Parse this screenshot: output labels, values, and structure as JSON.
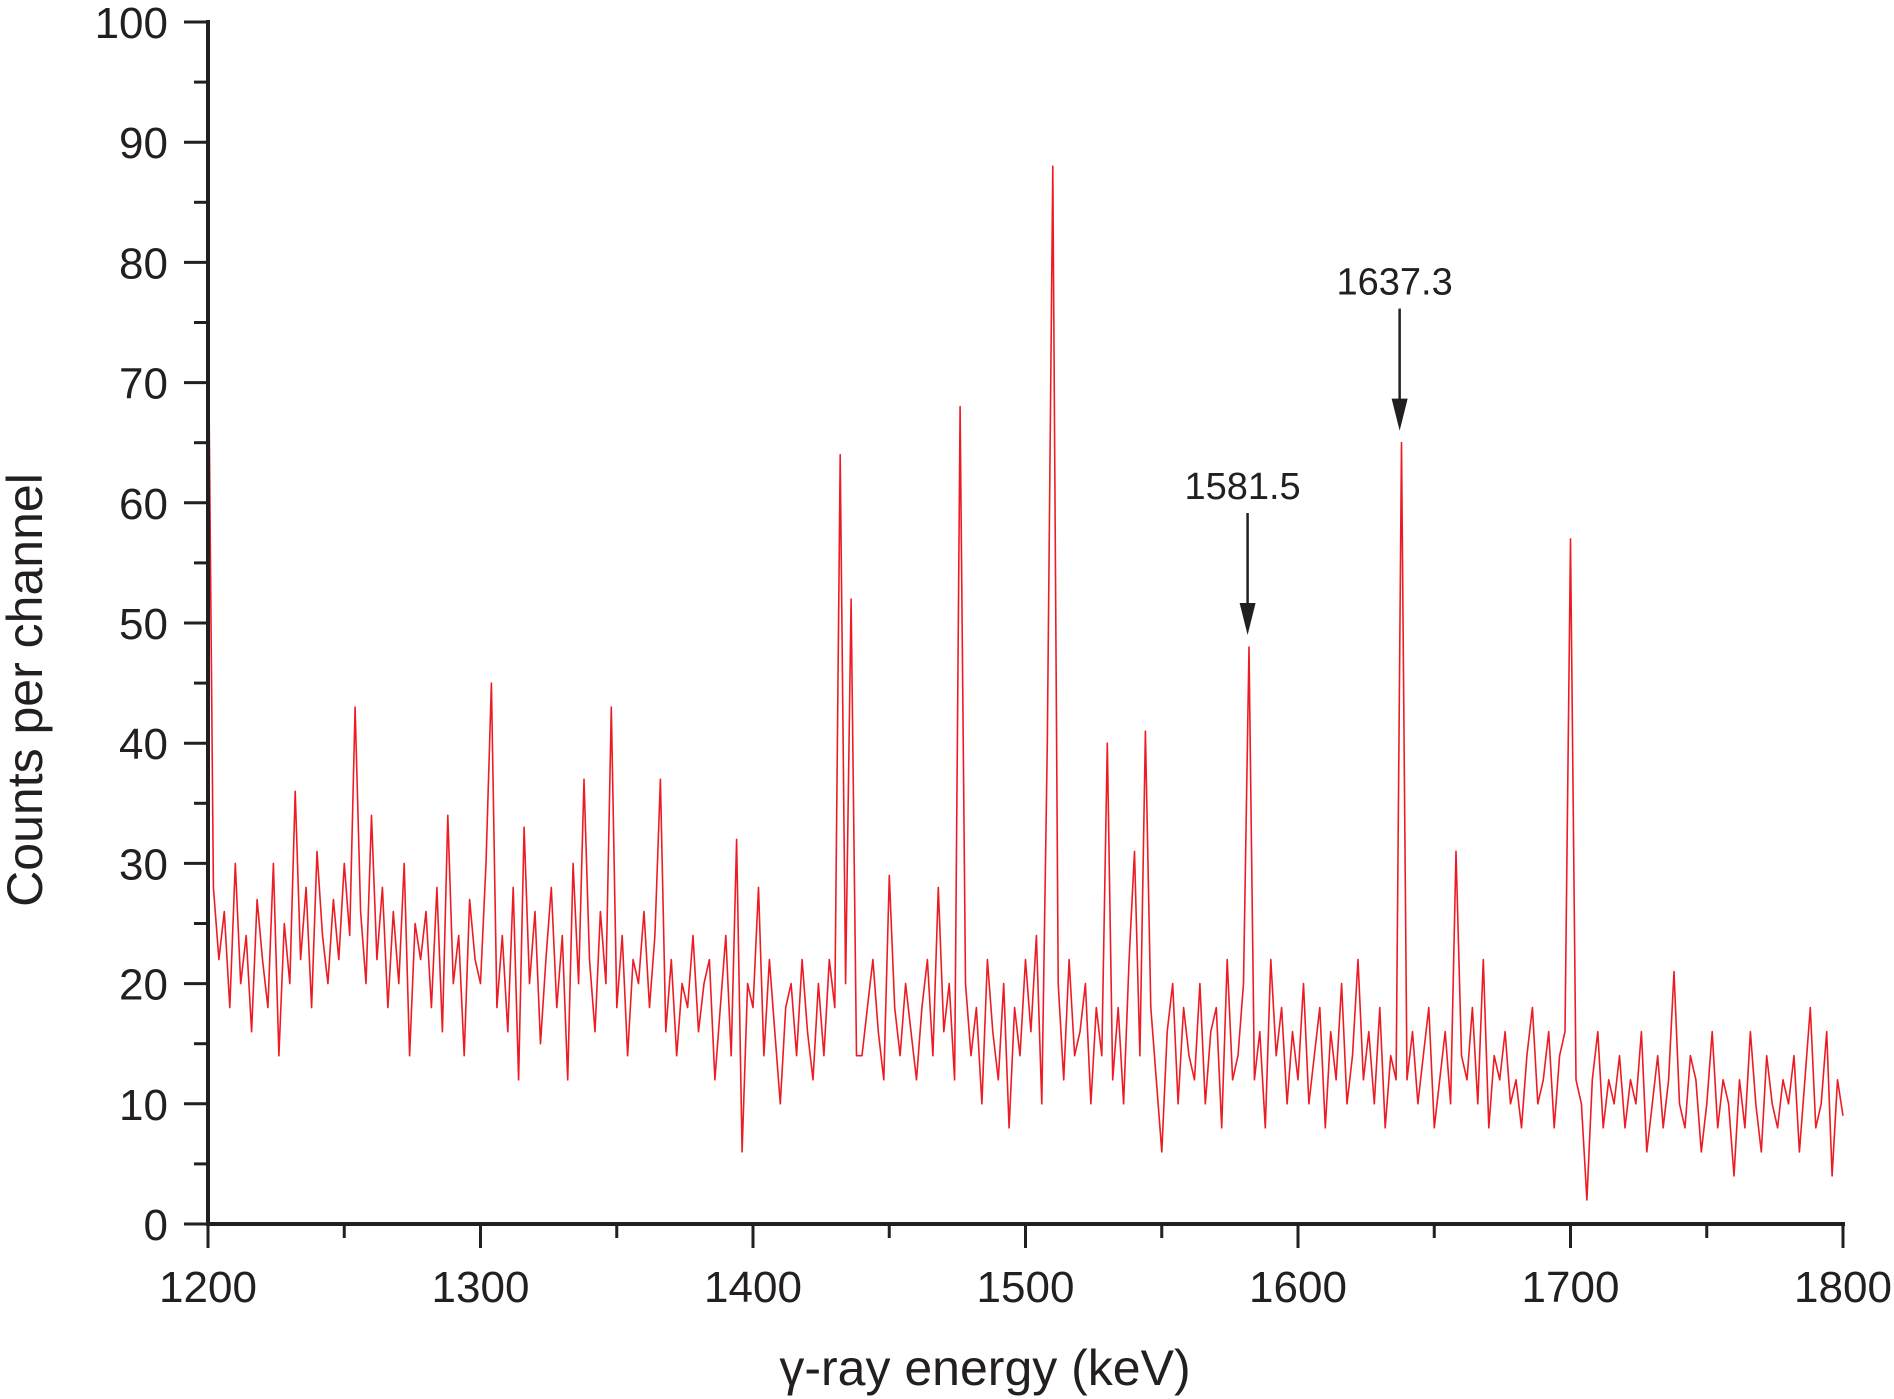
{
  "chart_data": {
    "type": "line",
    "title": "",
    "xlabel": "γ-ray energy (keV)",
    "ylabel": "Counts per channel",
    "xlim": [
      1200,
      1800
    ],
    "ylim": [
      0,
      100
    ],
    "xticks": [
      "1200",
      "1300",
      "1400",
      "1500",
      "1600",
      "1700",
      "1800"
    ],
    "yticks": [
      "0",
      "10",
      "20",
      "30",
      "40",
      "50",
      "60",
      "70",
      "80",
      "90",
      "100"
    ],
    "grid": false,
    "series": [
      {
        "name": "spectrum",
        "color": "#ed1c24",
        "x_start": 1200,
        "x_step": 2,
        "y": [
          78,
          28,
          22,
          26,
          18,
          30,
          20,
          24,
          16,
          27,
          22,
          18,
          30,
          14,
          25,
          20,
          36,
          22,
          28,
          18,
          31,
          24,
          20,
          27,
          22,
          30,
          24,
          43,
          26,
          20,
          34,
          22,
          28,
          18,
          26,
          20,
          30,
          14,
          25,
          22,
          26,
          18,
          28,
          16,
          34,
          20,
          24,
          14,
          27,
          22,
          20,
          30,
          45,
          18,
          24,
          16,
          28,
          12,
          33,
          20,
          26,
          15,
          22,
          28,
          18,
          24,
          12,
          30,
          20,
          37,
          22,
          16,
          26,
          20,
          43,
          18,
          24,
          14,
          22,
          20,
          26,
          18,
          24,
          37,
          16,
          22,
          14,
          20,
          18,
          24,
          16,
          20,
          22,
          12,
          18,
          24,
          14,
          32,
          6,
          20,
          18,
          28,
          14,
          22,
          16,
          10,
          18,
          20,
          14,
          22,
          16,
          12,
          20,
          14,
          22,
          18,
          64,
          20,
          52,
          14,
          14,
          18,
          22,
          16,
          12,
          29,
          18,
          14,
          20,
          16,
          12,
          18,
          22,
          14,
          28,
          16,
          20,
          12,
          68,
          20,
          14,
          18,
          10,
          22,
          16,
          12,
          20,
          8,
          18,
          14,
          22,
          16,
          24,
          10,
          40,
          88,
          20,
          12,
          22,
          14,
          16,
          20,
          10,
          18,
          14,
          40,
          12,
          18,
          10,
          22,
          31,
          14,
          41,
          18,
          12,
          6,
          16,
          20,
          10,
          18,
          14,
          12,
          20,
          10,
          16,
          18,
          8,
          22,
          12,
          14,
          20,
          48,
          12,
          16,
          8,
          22,
          14,
          18,
          10,
          16,
          12,
          20,
          10,
          14,
          18,
          8,
          16,
          12,
          20,
          10,
          14,
          22,
          12,
          16,
          10,
          18,
          8,
          14,
          12,
          65,
          12,
          16,
          10,
          14,
          18,
          8,
          12,
          16,
          10,
          31,
          14,
          12,
          18,
          10,
          22,
          8,
          14,
          12,
          16,
          10,
          12,
          8,
          14,
          18,
          10,
          12,
          16,
          8,
          14,
          16,
          57,
          12,
          10,
          2,
          12,
          16,
          8,
          12,
          10,
          14,
          8,
          12,
          10,
          16,
          6,
          10,
          14,
          8,
          12,
          21,
          10,
          8,
          14,
          12,
          6,
          10,
          16,
          8,
          12,
          10,
          4,
          12,
          8,
          16,
          10,
          6,
          14,
          10,
          8,
          12,
          10,
          14,
          6,
          12,
          18,
          8,
          10,
          16,
          4,
          12,
          9
        ]
      }
    ],
    "annotations": [
      {
        "text": "1581.5",
        "x": 1581.5,
        "arrow_tip_y": 49
      },
      {
        "text": "1637.3",
        "x": 1637.3,
        "arrow_tip_y": 66
      }
    ]
  }
}
